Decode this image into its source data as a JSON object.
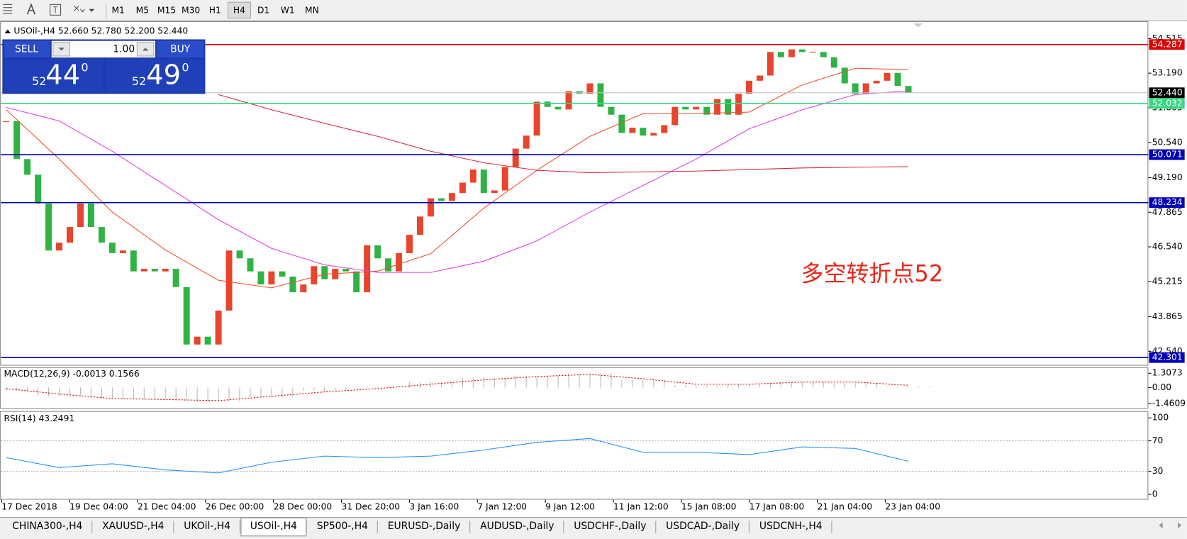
{
  "toolbar": {
    "timeframes": [
      "M1",
      "M5",
      "M15",
      "M30",
      "H1",
      "H4",
      "D1",
      "W1",
      "MN"
    ],
    "active": 5
  },
  "symbol_info": "USOil-,H4  52.660 52.780 52.200 52.440",
  "trade_panel": {
    "sell": "SELL",
    "buy": "BUY",
    "lots": "1.00",
    "sell_price": {
      "big": "52",
      "pips": "44",
      "fraction": "0"
    },
    "buy_price": {
      "big": "52",
      "pips": "49",
      "fraction": "0"
    }
  },
  "chart_data": {
    "type": "candlestick",
    "up_color": "#e8452c",
    "down_color": "#2fb344",
    "closes": [
      51.35,
      49.9,
      49.3,
      48.2,
      46.4,
      46.7,
      47.3,
      48.2,
      47.3,
      46.7,
      46.3,
      46.4,
      45.6,
      45.7,
      45.6,
      45.7,
      45.0,
      42.8,
      43.1,
      42.8,
      44.1,
      46.4,
      46.1,
      45.6,
      45.1,
      45.6,
      45.4,
      44.8,
      45.1,
      45.8,
      45.3,
      45.7,
      45.6,
      44.8,
      46.6,
      46.1,
      45.6,
      46.3,
      47.0,
      47.7,
      48.4,
      48.3,
      48.6,
      49.0,
      49.5,
      48.6,
      48.7,
      49.6,
      50.3,
      50.8,
      52.1,
      51.9,
      51.8,
      52.5,
      52.4,
      52.8,
      51.9,
      51.6,
      50.9,
      51.1,
      50.8,
      50.9,
      51.2,
      51.9,
      51.8,
      51.9,
      51.6,
      52.2,
      51.6,
      52.4,
      52.9,
      53.1,
      54.0,
      53.8,
      54.1,
      54.0,
      54.0,
      53.8,
      53.4,
      52.8,
      52.4,
      52.8,
      52.9,
      53.2,
      52.7,
      52.44
    ],
    "series": [
      {
        "color": "#f0502a",
        "values": [
          51.79,
          49.9,
          47.87,
          46.42,
          45.26,
          44.97,
          45.49,
          45.61,
          46.28,
          48.02,
          49.47,
          50.77,
          51.64,
          51.64,
          51.7,
          52.74,
          53.38,
          53.32
        ]
      },
      {
        "color": "#e23ce6",
        "values": [
          51.88,
          51.36,
          50.2,
          48.89,
          47.58,
          46.48,
          45.85,
          45.56,
          45.56,
          45.99,
          46.77,
          47.87,
          48.89,
          49.9,
          51.06,
          51.79,
          52.37,
          52.51
        ]
      },
      {
        "color": "#d0283c",
        "values": [
          null,
          null,
          null,
          null,
          52.37,
          51.79,
          51.27,
          50.77,
          50.2,
          49.76,
          49.47,
          49.38,
          49.41,
          49.44,
          49.5,
          49.56,
          49.59,
          49.61
        ]
      }
    ],
    "ylim": [
      42.02,
      55.18
    ],
    "yticks": [
      54.515,
      {
        "value": 53.19,
        "label": "53.190"
      },
      51.865,
      {
        "value": 50.54,
        "label": "50.540"
      },
      {
        "value": 49.19,
        "label": "49.190"
      },
      47.865,
      {
        "value": 46.54,
        "label": "46.540"
      },
      45.215,
      43.865,
      {
        "value": 42.54,
        "label": "42.540"
      }
    ],
    "levels": [
      {
        "value": 54.287,
        "color": "#e00000"
      },
      {
        "value": 52.44,
        "label": "52.440",
        "color": "#000000"
      },
      {
        "value": 52.032,
        "color": "#36d982"
      },
      {
        "value": 50.071,
        "color": "#0000b4"
      },
      {
        "value": 48.234,
        "color": "#0000b4"
      },
      {
        "value": 42.301,
        "color": "#0000b4"
      }
    ],
    "annotation": "多空转折点52",
    "x_labels": [
      "17 Dec 2018",
      "19 Dec 04:00",
      "21 Dec 04:00",
      "26 Dec 00:00",
      "28 Dec 00:00",
      "31 Dec 20:00",
      "3 Jan 16:00",
      "7 Jan 12:00",
      "9 Jan 12:00",
      "11 Jan 12:00",
      "15 Jan 08:00",
      "17 Jan 08:00",
      "21 Jan 04:00",
      "23 Jan 04:00"
    ]
  },
  "macd": {
    "title": "MACD(12,26,9) -0.0013 0.1566",
    "histogram": [
      -0.3,
      -0.8,
      -1.0,
      -1.1,
      -1.3,
      -0.9,
      -0.3,
      0.1,
      0.5,
      0.9,
      1.1,
      1.3,
      0.7,
      0.2,
      0.3,
      0.5,
      0.4,
      0.1
    ],
    "signal": [
      -0.1,
      -0.6,
      -1.0,
      -1.1,
      -1.2,
      -0.8,
      -0.4,
      -0.1,
      0.3,
      0.7,
      1.0,
      1.2,
      0.8,
      0.3,
      0.3,
      0.5,
      0.5,
      0.2
    ],
    "ylim": [
      -1.945,
      1.792
    ],
    "yticks": [
      1.3073,
      {
        "value": 0,
        "label": "0.00"
      },
      -1.4609
    ]
  },
  "rsi": {
    "title": "RSI(14) 43.2491",
    "color": "#1e90ff",
    "values": [
      48,
      35,
      40,
      32,
      28,
      42,
      50,
      48,
      50,
      58,
      68,
      73,
      55,
      55,
      52,
      62,
      60,
      43.2491
    ],
    "ylim": [
      -6.9,
      107.9
    ],
    "yticks": [
      100,
      70,
      30,
      0
    ],
    "levels": [
      70,
      30
    ]
  },
  "tabs": [
    "CHINA300-,H4",
    "XAUUSD-,H4",
    "UKOil-,H4",
    "USOil-,H4",
    "SP500-,H4",
    "EURUSD-,Daily",
    "AUDUSD-,Daily",
    "USDCHF-,Daily",
    "USDCAD-,Daily",
    "USDCNH-,H4"
  ],
  "active_tab": 3
}
